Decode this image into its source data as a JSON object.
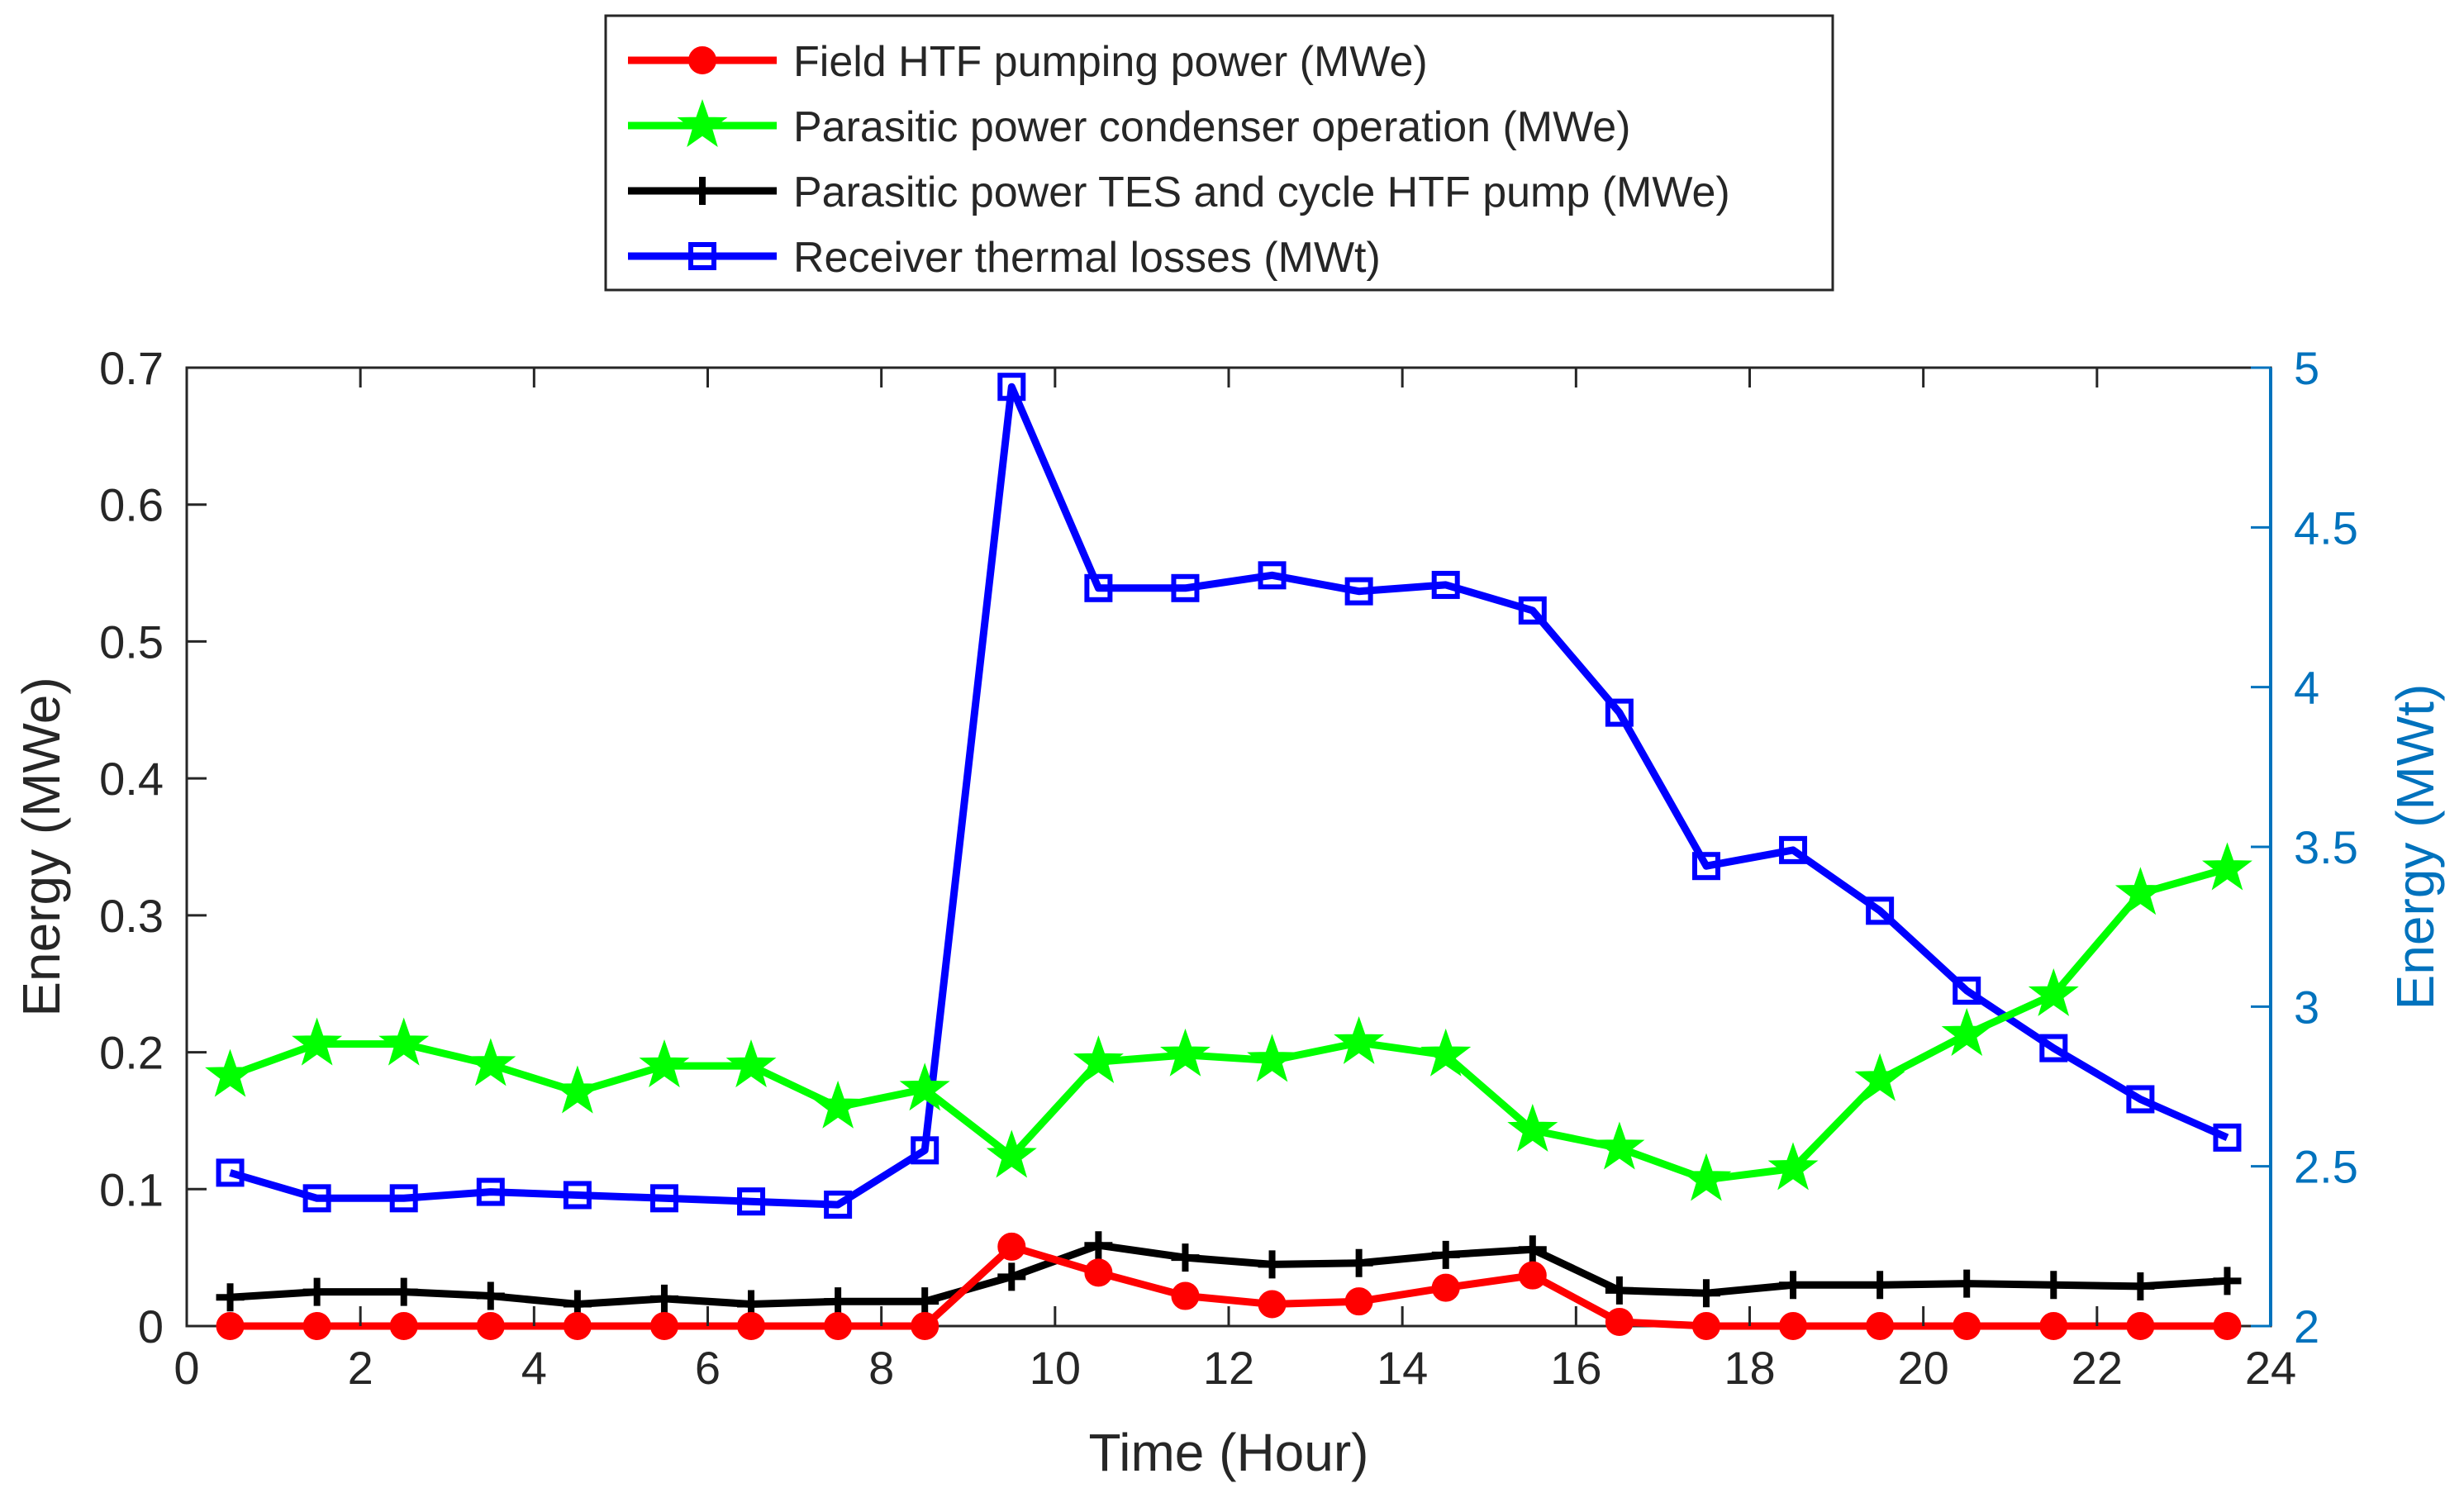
{
  "colors": {
    "field_htf": "#ff0000",
    "condenser": "#00ff00",
    "tes_pump": "#000000",
    "receiver": "#0000ff",
    "right_axis": "#0072bd",
    "axis": "#262626"
  },
  "legend": {
    "items": [
      {
        "label": "Field HTF pumping power (MWe)",
        "marker": "circle"
      },
      {
        "label": "Parasitic power condenser operation (MWe)",
        "marker": "star"
      },
      {
        "label": "Parasitic power TES and cycle HTF pump (MWe)",
        "marker": "plus"
      },
      {
        "label": "Receiver thermal losses (MWt)",
        "marker": "square"
      }
    ]
  },
  "chart_data": {
    "type": "line",
    "xlabel": "Time (Hour)",
    "ylabel_left": "Energy (MWe)",
    "ylabel_right": "Energy (MWt)",
    "xlim": [
      0,
      24
    ],
    "ylim_left": [
      0,
      0.7
    ],
    "ylim_right": [
      2,
      5
    ],
    "x_ticks": [
      "0",
      "2",
      "4",
      "6",
      "8",
      "10",
      "12",
      "14",
      "16",
      "18",
      "20",
      "22",
      "24"
    ],
    "y_left_ticks": [
      "0",
      "0.1",
      "0.2",
      "0.3",
      "0.4",
      "0.5",
      "0.6",
      "0.7"
    ],
    "y_right_ticks": [
      "2",
      "2.5",
      "3",
      "3.5",
      "4",
      "4.5",
      "5"
    ],
    "grid": false,
    "legend_position": "top-outside",
    "x": [
      0.5,
      1.5,
      2.5,
      3.5,
      4.5,
      5.5,
      6.5,
      7.5,
      8.5,
      9.5,
      10.5,
      11.5,
      12.5,
      13.5,
      14.5,
      15.5,
      16.5,
      17.5,
      18.5,
      19.5,
      20.5,
      21.5,
      22.5,
      23.5
    ],
    "series": [
      {
        "name": "Field HTF pumping power (MWe)",
        "axis": "left",
        "marker": "circle",
        "values": [
          0,
          0,
          0,
          0,
          0,
          0,
          0,
          0,
          0,
          0.058,
          0.039,
          0.022,
          0.016,
          0.018,
          0.028,
          0.037,
          0.003,
          0,
          0,
          0,
          0,
          0,
          0,
          0
        ]
      },
      {
        "name": "Parasitic power condenser operation (MWe)",
        "axis": "left",
        "marker": "star",
        "values": [
          0.183,
          0.206,
          0.206,
          0.191,
          0.171,
          0.19,
          0.19,
          0.16,
          0.173,
          0.124,
          0.193,
          0.198,
          0.194,
          0.207,
          0.198,
          0.143,
          0.13,
          0.107,
          0.115,
          0.18,
          0.213,
          0.242,
          0.316,
          0.334
        ]
      },
      {
        "name": "Parasitic power TES and cycle HTF pump (MWe)",
        "axis": "left",
        "marker": "plus",
        "values": [
          0.021,
          0.025,
          0.025,
          0.022,
          0.016,
          0.02,
          0.016,
          0.018,
          0.018,
          0.036,
          0.059,
          0.05,
          0.045,
          0.046,
          0.052,
          0.056,
          0.026,
          0.024,
          0.03,
          0.03,
          0.031,
          0.03,
          0.029,
          0.033
        ]
      },
      {
        "name": "Receiver thermal losses (MWt)",
        "axis": "right",
        "marker": "square",
        "values": [
          2.48,
          2.4,
          2.4,
          2.42,
          2.41,
          2.4,
          2.39,
          2.38,
          2.55,
          4.94,
          4.31,
          4.31,
          4.35,
          4.3,
          4.32,
          4.24,
          3.92,
          3.44,
          3.49,
          3.3,
          3.05,
          2.87,
          2.71,
          2.59
        ]
      }
    ]
  }
}
